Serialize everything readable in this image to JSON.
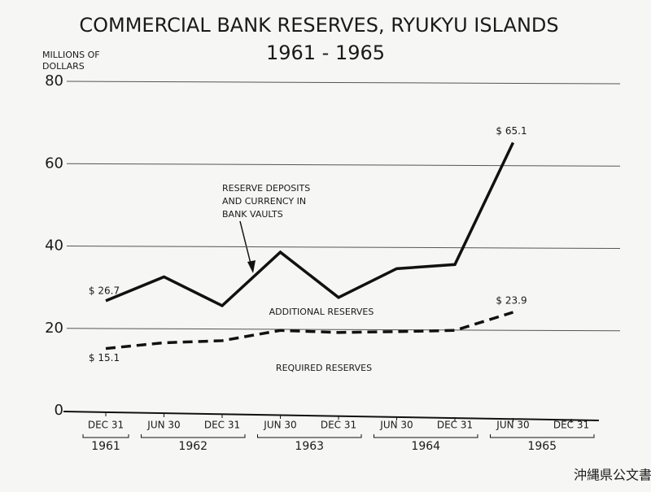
{
  "chart_data": {
    "type": "line",
    "title": "COMMERCIAL BANK RESERVES, RYUKYU ISLANDS",
    "subtitle": "1961 - 1965",
    "ylabel": [
      "MILLIONS OF",
      "DOLLARS"
    ],
    "categories": [
      "DEC 31",
      "JUN 30",
      "DEC 31",
      "JUN 30",
      "DEC 31",
      "JUN 30",
      "DEC 31",
      "JUN 30",
      "DEC 31"
    ],
    "years": [
      "1961",
      "1962",
      "1963",
      "1964",
      "1965"
    ],
    "series": [
      {
        "color": "#111111",
        "style": "solid",
        "values": [
          26.7,
          32.5,
          25.5,
          38.5,
          27.5,
          34.5,
          35.5,
          65.1,
          null
        ],
        "value_labels": [
          "$ 26.7",
          null,
          null,
          null,
          null,
          null,
          null,
          "$ 65.1",
          null
        ]
      },
      {
        "color": "#111111",
        "style": "dashed",
        "values": [
          15.1,
          16.5,
          17,
          19.5,
          19,
          19.2,
          19.5,
          23.9,
          null
        ],
        "value_labels": [
          "$ 15.1",
          null,
          null,
          null,
          null,
          null,
          null,
          "$ 23.9",
          null
        ]
      }
    ],
    "annotations": [
      {
        "text": [
          "RESERVE DEPOSITS",
          "AND CURRENCY IN",
          "BANK VAULTS"
        ]
      },
      {
        "text": [
          "ADDITIONAL RESERVES"
        ]
      },
      {
        "text": [
          "REQUIRED RESERVES"
        ]
      }
    ],
    "ylim": [
      0,
      80
    ],
    "yticks": [
      0,
      20,
      40,
      60,
      80
    ],
    "grid": true,
    "watermark": "沖縄県公文書館"
  }
}
